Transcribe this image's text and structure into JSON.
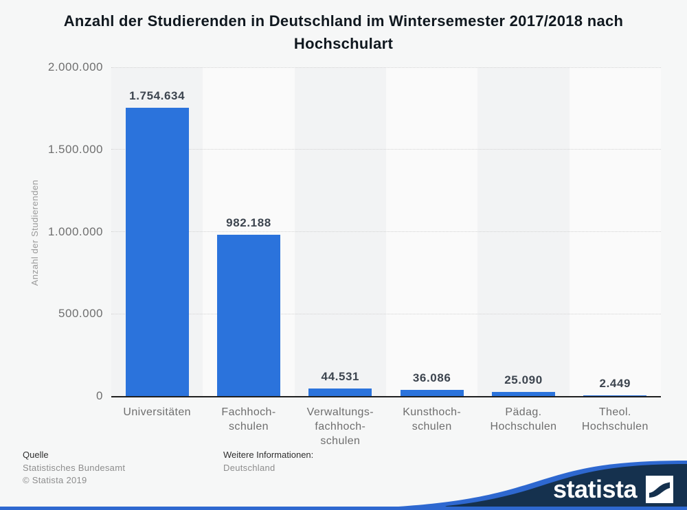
{
  "title_lines": {
    "line1": "Anzahl der Studierenden in Deutschland im Wintersemester 2017/2018 nach",
    "line2": "Hochschulart"
  },
  "chart_data": {
    "type": "bar",
    "title": "Anzahl der Studierenden in Deutschland im Wintersemester 2017/2018 nach Hochschulart",
    "xlabel": "",
    "ylabel": "Anzahl der Studierenden",
    "ylim": [
      0,
      2000000
    ],
    "grid": "horizontal-dotted",
    "legend": "none",
    "categories": [
      [
        "Universitäten"
      ],
      [
        "Fachhoch-",
        "schulen"
      ],
      [
        "Verwaltungs-",
        "fachhoch-",
        "schulen"
      ],
      [
        "Kunsthoch-",
        "schulen"
      ],
      [
        "Pädag.",
        "Hochschulen"
      ],
      [
        "Theol.",
        "Hochschulen"
      ]
    ],
    "values": [
      1754634,
      982188,
      44531,
      36086,
      25090,
      2449
    ],
    "value_labels": [
      "1.754.634",
      "982.188",
      "44.531",
      "36.086",
      "25.090",
      "2.449"
    ],
    "yticks": [
      {
        "value": 2000000,
        "label": "2.000.000"
      },
      {
        "value": 1500000,
        "label": "1.500.000"
      },
      {
        "value": 1000000,
        "label": "1.000.000"
      },
      {
        "value": 500000,
        "label": "500.000"
      },
      {
        "value": 0,
        "label": "0"
      }
    ]
  },
  "footer": {
    "source_heading": "Quelle",
    "source_lines": [
      "Statistisches Bundesamt",
      "© Statista 2019"
    ],
    "info_heading": "Weitere Informationen:",
    "info_lines": [
      "Deutschland"
    ]
  },
  "branding": {
    "logo_text": "statista"
  },
  "colors": {
    "bar": "#2b73dc",
    "value_label": "#3d454f",
    "brand_navy": "#15314e",
    "brand_blue": "#2e68d0",
    "band_even": "#f2f3f4",
    "band_odd": "#fafafa",
    "grid": "#d2d2d2",
    "axis": "#1f1f1f"
  }
}
